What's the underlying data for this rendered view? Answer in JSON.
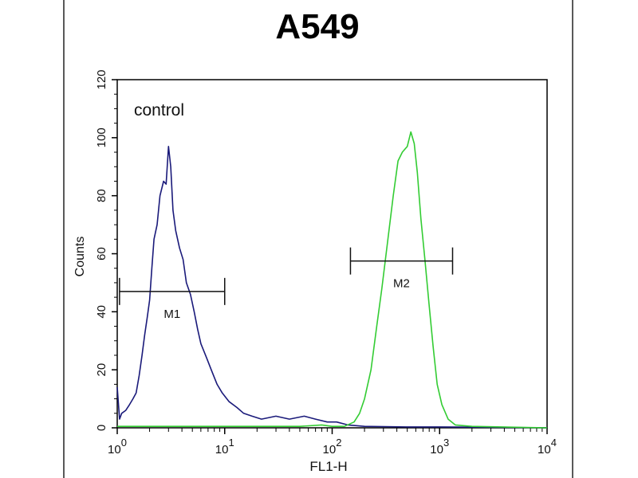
{
  "chart_data": {
    "type": "line",
    "title": "A549",
    "xlabel": "FL1-H",
    "ylabel": "Counts",
    "xscale": "log",
    "xlim": [
      1,
      10000
    ],
    "ylim": [
      0,
      120
    ],
    "y_ticks": [
      0,
      20,
      40,
      60,
      80,
      100,
      120
    ],
    "x_ticks": [
      {
        "base": "10",
        "exp": "0",
        "value": 1
      },
      {
        "base": "10",
        "exp": "1",
        "value": 10
      },
      {
        "base": "10",
        "exp": "2",
        "value": 100
      },
      {
        "base": "10",
        "exp": "3",
        "value": 1000
      },
      {
        "base": "10",
        "exp": "4",
        "value": 10000
      }
    ],
    "annotation": "control",
    "grid": false,
    "series": [
      {
        "color": "#1a1a7a",
        "points": [
          [
            1,
            14
          ],
          [
            1.05,
            3
          ],
          [
            1.1,
            5
          ],
          [
            1.2,
            6
          ],
          [
            1.3,
            8
          ],
          [
            1.4,
            10
          ],
          [
            1.5,
            12
          ],
          [
            1.6,
            18
          ],
          [
            1.7,
            25
          ],
          [
            1.8,
            32
          ],
          [
            1.9,
            38
          ],
          [
            2.0,
            44
          ],
          [
            2.1,
            55
          ],
          [
            2.2,
            65
          ],
          [
            2.35,
            70
          ],
          [
            2.5,
            80
          ],
          [
            2.7,
            85
          ],
          [
            2.85,
            84
          ],
          [
            3.0,
            97
          ],
          [
            3.15,
            90
          ],
          [
            3.3,
            75
          ],
          [
            3.5,
            68
          ],
          [
            3.8,
            62
          ],
          [
            4.1,
            58
          ],
          [
            4.4,
            50
          ],
          [
            4.8,
            46
          ],
          [
            5.2,
            40
          ],
          [
            5.6,
            34
          ],
          [
            6.0,
            29
          ],
          [
            6.8,
            24
          ],
          [
            7.5,
            20
          ],
          [
            8.5,
            15
          ],
          [
            9.5,
            12
          ],
          [
            11,
            9
          ],
          [
            13,
            7
          ],
          [
            15,
            5
          ],
          [
            18,
            4
          ],
          [
            22,
            3
          ],
          [
            30,
            4
          ],
          [
            40,
            3
          ],
          [
            55,
            4
          ],
          [
            70,
            3
          ],
          [
            90,
            2
          ],
          [
            110,
            2
          ],
          [
            140,
            1
          ],
          [
            200,
            0.5
          ],
          [
            500,
            0.3
          ],
          [
            1000,
            0.3
          ],
          [
            3000,
            0.2
          ],
          [
            10000,
            0
          ]
        ]
      },
      {
        "color": "#33cc33",
        "points": [
          [
            1,
            0.5
          ],
          [
            50,
            0.5
          ],
          [
            80,
            1
          ],
          [
            100,
            0.5
          ],
          [
            130,
            0.5
          ],
          [
            160,
            2
          ],
          [
            180,
            5
          ],
          [
            200,
            10
          ],
          [
            230,
            20
          ],
          [
            260,
            35
          ],
          [
            290,
            48
          ],
          [
            330,
            65
          ],
          [
            370,
            80
          ],
          [
            410,
            92
          ],
          [
            450,
            95
          ],
          [
            500,
            97
          ],
          [
            540,
            102
          ],
          [
            580,
            98
          ],
          [
            620,
            88
          ],
          [
            670,
            72
          ],
          [
            730,
            58
          ],
          [
            800,
            42
          ],
          [
            870,
            28
          ],
          [
            950,
            15
          ],
          [
            1050,
            8
          ],
          [
            1200,
            3
          ],
          [
            1400,
            1
          ],
          [
            2000,
            0.5
          ],
          [
            10000,
            0
          ]
        ]
      }
    ],
    "markers": [
      {
        "label": "M1",
        "x_range": [
          1.05,
          10
        ],
        "y": 47
      },
      {
        "label": "M2",
        "x_range": [
          148,
          1320
        ],
        "y": 57.5
      }
    ]
  }
}
